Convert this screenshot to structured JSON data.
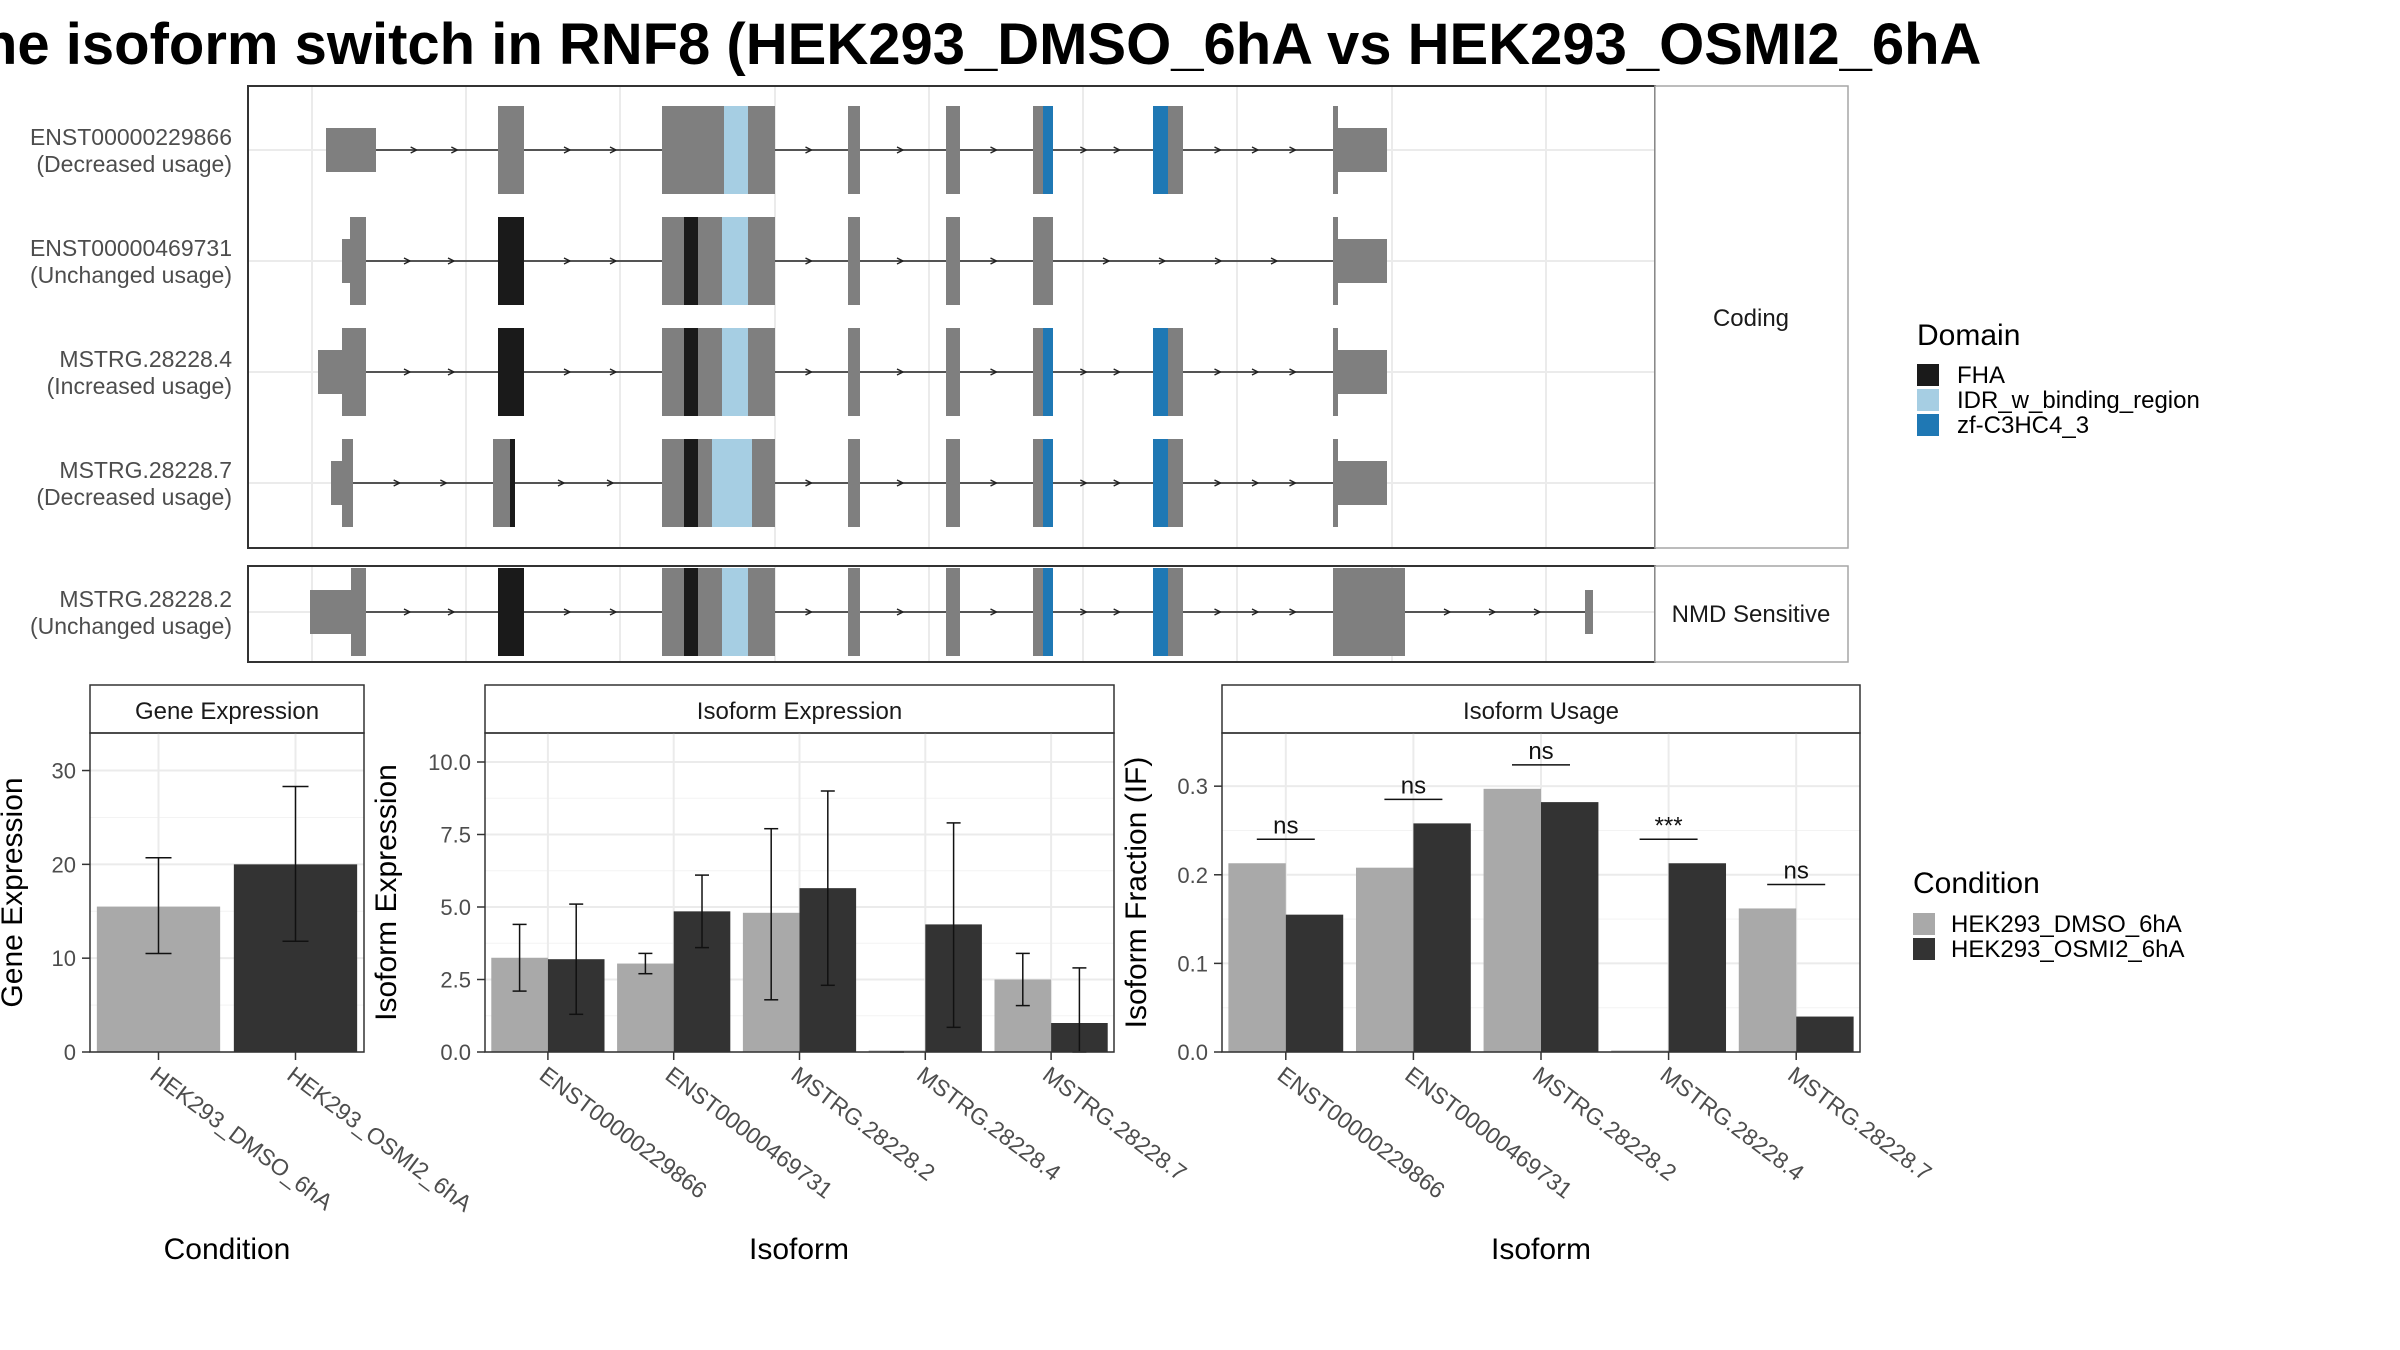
{
  "title": "he isoform switch in RNF8 (HEK293_DMSO_6hA vs HEK293_OSMI2_6hA",
  "colors": {
    "exon": "#7f7f7f",
    "FHA": "#1a1a1a",
    "IDR_w_binding_region": "#a6cee3",
    "zf-C3HC4_3": "#1f78b4",
    "HEK293_DMSO_6hA": "#a9a9a9",
    "HEK293_OSMI2_6hA": "#333333"
  },
  "structure": {
    "domain_legend_title": "Domain",
    "domains": [
      "FHA",
      "IDR_w_binding_region",
      "zf-C3HC4_3"
    ],
    "panels": [
      {
        "label": "Coding",
        "isoforms": [
          {
            "id": "ENST00000229866",
            "status": "(Decreased usage)"
          },
          {
            "id": "ENST00000469731",
            "status": "(Unchanged usage)"
          },
          {
            "id": "MSTRG.28228.4",
            "status": "(Increased usage)"
          },
          {
            "id": "MSTRG.28228.7",
            "status": "(Decreased usage)"
          }
        ]
      },
      {
        "label": "NMD Sensitive",
        "isoforms": [
          {
            "id": "MSTRG.28228.2",
            "status": "(Unchanged usage)"
          }
        ]
      }
    ]
  },
  "condition_legend": {
    "title": "Condition",
    "items": [
      "HEK293_DMSO_6hA",
      "HEK293_OSMI2_6hA"
    ]
  },
  "chart_data": [
    {
      "type": "bar",
      "title": "Gene Expression",
      "xlabel": "Condition",
      "ylabel": "Gene Expression",
      "ylim": [
        0,
        34
      ],
      "yticks": [
        0,
        10,
        20,
        30
      ],
      "categories": [
        "HEK293_DMSO_6hA",
        "HEK293_OSMI2_6hA"
      ],
      "values": [
        15.5,
        20
      ],
      "error": [
        [
          10.5,
          20.7
        ],
        [
          11.8,
          28.3
        ]
      ]
    },
    {
      "type": "bar",
      "title": "Isoform Expression",
      "xlabel": "Isoform",
      "ylabel": "Isoform Expression",
      "ylim": [
        0,
        11
      ],
      "yticks": [
        0.0,
        2.5,
        5.0,
        7.5,
        10.0
      ],
      "yticklabels": [
        "0.0",
        "2.5",
        "5.0",
        "7.5",
        "10.0"
      ],
      "categories": [
        "ENST00000229866",
        "ENST00000469731",
        "MSTRG.28228.2",
        "MSTRG.28228.4",
        "MSTRG.28228.7"
      ],
      "series": [
        {
          "name": "HEK293_DMSO_6hA",
          "values": [
            3.25,
            3.05,
            4.8,
            0.0,
            2.5
          ],
          "error": [
            [
              2.1,
              4.4
            ],
            [
              2.7,
              3.4
            ],
            [
              1.8,
              7.7
            ],
            [
              0.0,
              0.0
            ],
            [
              1.6,
              3.4
            ]
          ]
        },
        {
          "name": "HEK293_OSMI2_6hA",
          "values": [
            3.2,
            4.85,
            5.65,
            4.4,
            1.0
          ],
          "error": [
            [
              1.3,
              5.1
            ],
            [
              3.6,
              6.1
            ],
            [
              2.3,
              9.0
            ],
            [
              0.85,
              7.9
            ],
            [
              0.0,
              2.9
            ]
          ]
        }
      ]
    },
    {
      "type": "bar",
      "title": "Isoform Usage",
      "xlabel": "Isoform",
      "ylabel": "Isoform Fraction (IF)",
      "ylim": [
        0,
        0.36
      ],
      "yticks": [
        0.0,
        0.1,
        0.2,
        0.3
      ],
      "yticklabels": [
        "0.0",
        "0.1",
        "0.2",
        "0.3"
      ],
      "categories": [
        "ENST00000229866",
        "ENST00000469731",
        "MSTRG.28228.2",
        "MSTRG.28228.4",
        "MSTRG.28228.7"
      ],
      "series": [
        {
          "name": "HEK293_DMSO_6hA",
          "values": [
            0.213,
            0.208,
            0.297,
            0.0,
            0.162
          ]
        },
        {
          "name": "HEK293_OSMI2_6hA",
          "values": [
            0.155,
            0.258,
            0.282,
            0.213,
            0.04
          ]
        }
      ],
      "significance": [
        "ns",
        "ns",
        "ns",
        "***",
        "ns"
      ]
    }
  ]
}
